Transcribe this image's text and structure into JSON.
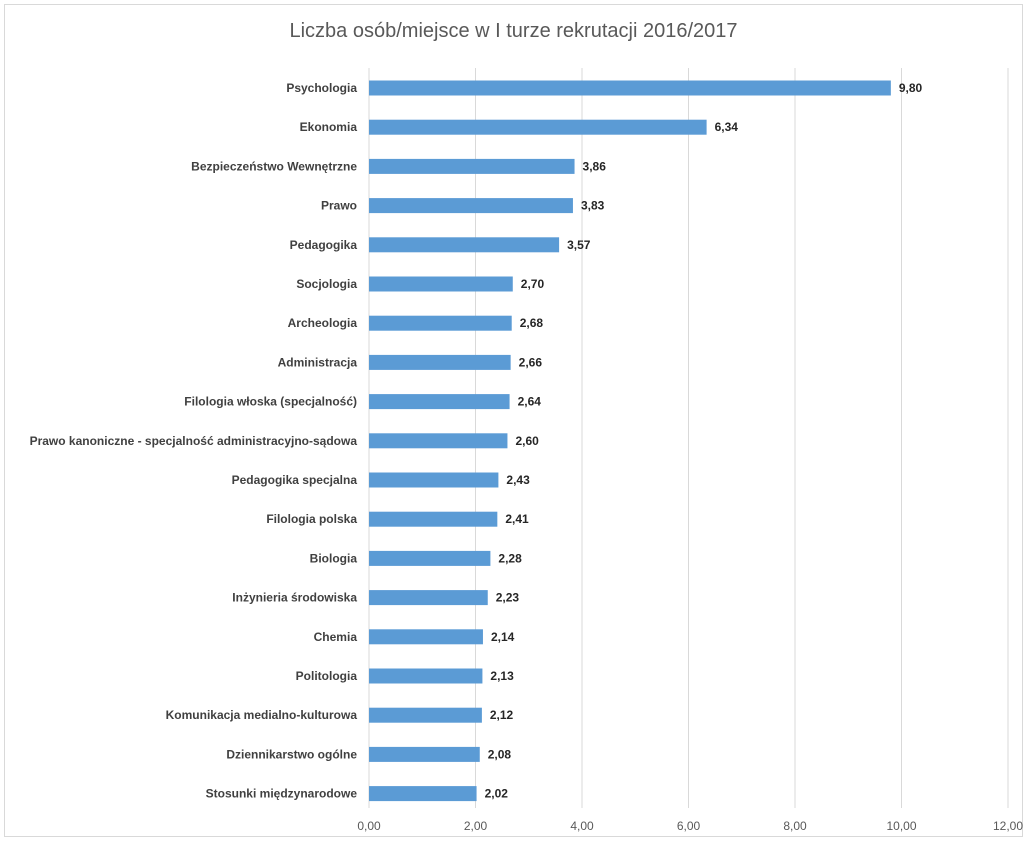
{
  "chart_data": {
    "type": "bar",
    "orientation": "horizontal",
    "title": "Liczba osób/miejsce w I turze rekrutacji 2016/2017",
    "xlabel": "",
    "ylabel": "",
    "xlim": [
      0,
      12
    ],
    "ticks": [
      "0,00",
      "2,00",
      "4,00",
      "6,00",
      "8,00",
      "10,00",
      "12,00"
    ],
    "tick_values": [
      0,
      2,
      4,
      6,
      8,
      10,
      12
    ],
    "grid": true,
    "bar_color": "#5b9bd5",
    "categories": [
      "Psychologia",
      "Ekonomia",
      "Bezpieczeństwo Wewnętrzne",
      "Prawo",
      "Pedagogika",
      "Socjologia",
      "Archeologia",
      "Administracja",
      "Filologia włoska (specjalność)",
      "Prawo kanoniczne - specjalność administracyjno-sądowa",
      "Pedagogika specjalna",
      "Filologia polska",
      "Biologia",
      "Inżynieria środowiska",
      "Chemia",
      "Politologia",
      "Komunikacja medialno-kulturowa",
      "Dziennikarstwo ogólne",
      "Stosunki międzynarodowe"
    ],
    "values": [
      9.8,
      6.34,
      3.86,
      3.83,
      3.57,
      2.7,
      2.68,
      2.66,
      2.64,
      2.6,
      2.43,
      2.41,
      2.28,
      2.23,
      2.14,
      2.13,
      2.12,
      2.08,
      2.02
    ],
    "value_labels": [
      "9,80",
      "6,34",
      "3,86",
      "3,83",
      "3,57",
      "2,70",
      "2,68",
      "2,66",
      "2,64",
      "2,60",
      "2,43",
      "2,41",
      "2,28",
      "2,23",
      "2,14",
      "2,13",
      "2,12",
      "2,08",
      "2,02"
    ]
  }
}
